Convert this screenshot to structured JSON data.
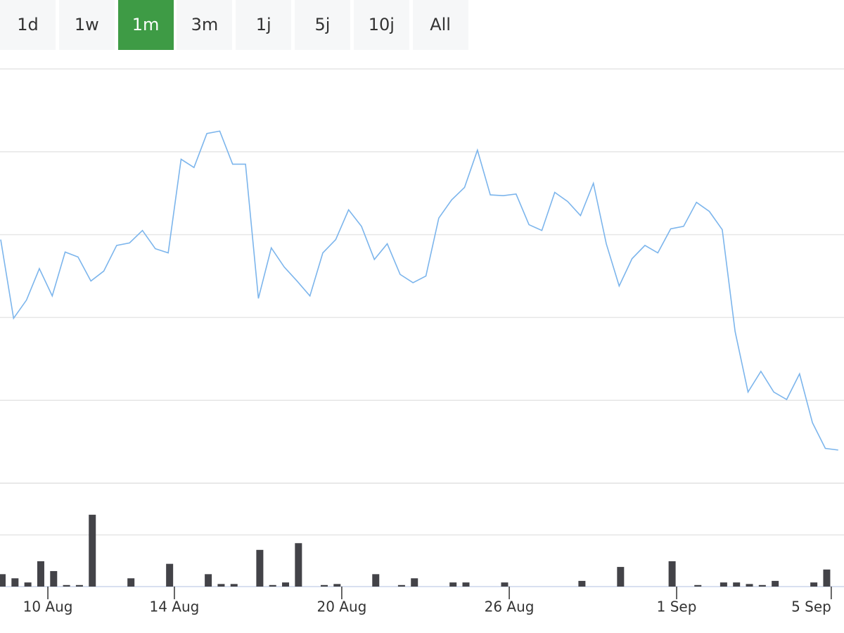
{
  "range_selector": {
    "buttons": [
      {
        "label": "1d",
        "selected": false
      },
      {
        "label": "1w",
        "selected": false
      },
      {
        "label": "1m",
        "selected": true
      },
      {
        "label": "3m",
        "selected": false
      },
      {
        "label": "1j",
        "selected": false
      },
      {
        "label": "5j",
        "selected": false
      },
      {
        "label": "10j",
        "selected": false
      },
      {
        "label": "All",
        "selected": false
      }
    ]
  },
  "chart_data": [
    {
      "type": "line",
      "x": [
        0,
        1,
        2,
        3,
        4,
        5,
        6,
        7,
        8,
        9,
        10,
        11,
        12,
        13,
        14,
        15,
        16,
        17,
        18,
        19,
        20,
        21,
        22,
        23,
        24,
        25,
        26,
        27,
        28,
        29,
        30,
        31,
        32,
        33,
        34,
        35,
        36,
        37,
        38,
        39,
        40,
        41,
        42,
        43,
        44,
        45,
        46,
        47,
        48,
        49,
        50,
        51,
        52,
        53,
        54,
        55,
        56,
        57,
        58,
        59,
        60,
        61,
        62,
        63,
        64,
        65
      ],
      "series": [
        {
          "color": "#7cb5ec",
          "values": [
            2.94,
            1.99,
            2.21,
            2.59,
            2.26,
            2.79,
            2.73,
            2.44,
            2.56,
            2.87,
            2.9,
            3.05,
            2.83,
            2.78,
            3.91,
            3.81,
            4.22,
            4.25,
            3.85,
            3.85,
            2.23,
            2.84,
            2.61,
            2.44,
            2.26,
            2.78,
            2.94,
            3.3,
            3.1,
            2.7,
            2.89,
            2.52,
            2.42,
            2.5,
            3.2,
            3.42,
            3.57,
            4.02,
            3.48,
            3.47,
            3.49,
            3.12,
            3.05,
            3.51,
            3.4,
            3.23,
            3.62,
            2.89,
            2.38,
            2.71,
            2.87,
            2.78,
            3.07,
            3.1,
            3.39,
            3.28,
            3.06,
            1.83,
            1.1,
            1.35,
            1.1,
            1.01,
            1.32,
            0.73,
            0.42,
            0.4
          ]
        }
      ],
      "xlim": [
        0,
        65.45
      ],
      "ylim": [
        0,
        5
      ],
      "yticks": [
        0,
        1,
        2,
        3,
        4,
        5
      ],
      "grid": true
    },
    {
      "type": "bar",
      "x": [
        0,
        1,
        2,
        3,
        4,
        5,
        6,
        7,
        8,
        9,
        10,
        11,
        12,
        13,
        14,
        15,
        16,
        17,
        18,
        19,
        20,
        21,
        22,
        23,
        24,
        25,
        26,
        27,
        28,
        29,
        30,
        31,
        32,
        33,
        34,
        35,
        36,
        37,
        38,
        39,
        40,
        41,
        42,
        43,
        44,
        45,
        46,
        47,
        48,
        49,
        50,
        51,
        52,
        53,
        54,
        55,
        56,
        57,
        58,
        59,
        60,
        61,
        62,
        63,
        64,
        65
      ],
      "values": [
        0.24,
        0.16,
        0.08,
        0.49,
        0.3,
        0.03,
        0.03,
        1.39,
        0,
        0,
        0.16,
        0,
        0,
        0.44,
        0,
        0,
        0.24,
        0.05,
        0.05,
        0,
        0.71,
        0.03,
        0.08,
        0.84,
        0,
        0.03,
        0.05,
        0,
        0,
        0.24,
        0,
        0.03,
        0.16,
        0,
        0,
        0.08,
        0.08,
        0,
        0,
        0.08,
        0,
        0,
        0,
        0,
        0,
        0.11,
        0,
        0,
        0.38,
        0,
        0,
        0,
        0.49,
        0,
        0.03,
        0,
        0.08,
        0.08,
        0.05,
        0.03,
        0.11,
        0,
        0,
        0.08,
        0.33,
        0
      ],
      "color": "#434348",
      "xlim": [
        0,
        65.45
      ],
      "xticks": [
        {
          "value": 3.66,
          "label": "10 Aug"
        },
        {
          "value": 13.48,
          "label": "14 Aug"
        },
        {
          "value": 26.47,
          "label": "20 Aug"
        },
        {
          "value": 39.47,
          "label": "26 Aug"
        },
        {
          "value": 52.46,
          "label": "1 Sep"
        },
        {
          "value": 64.46,
          "label": "5 Sep"
        }
      ],
      "ylim": [
        0,
        2
      ],
      "yticks": [
        0,
        1,
        2
      ],
      "grid": true
    }
  ]
}
